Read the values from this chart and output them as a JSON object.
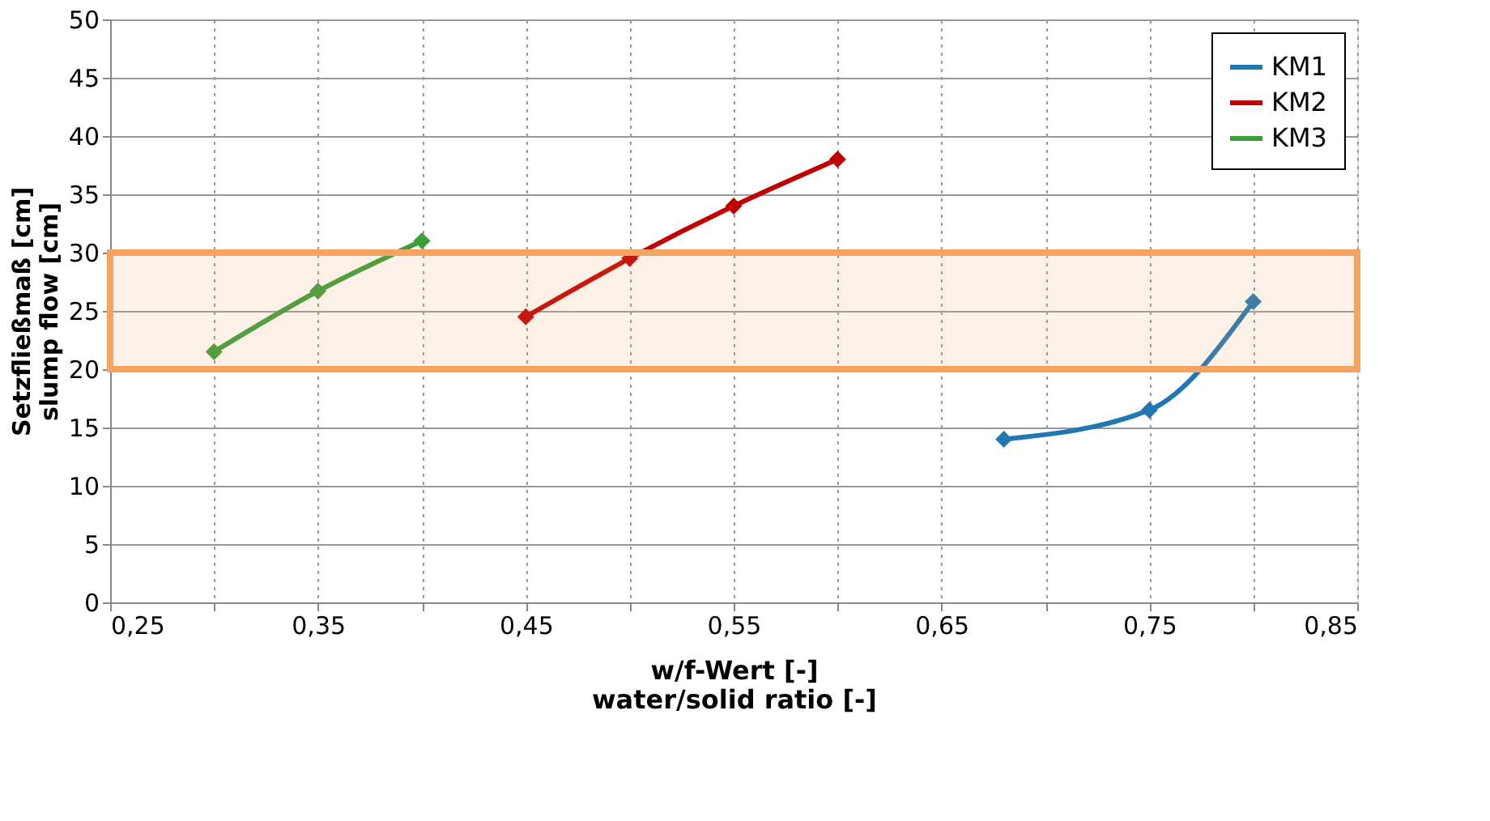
{
  "chart_data": {
    "type": "line",
    "xlabel": "w/f-Wert [-]\nwater/solid ratio [-]",
    "ylabel": "Setzfließmaß [cm]\nslump flow [cm]",
    "xlim": [
      0.25,
      0.85
    ],
    "xticks": [
      {
        "value": 0.25,
        "label": "0,25"
      },
      {
        "value": 0.3,
        "label": null
      },
      {
        "value": 0.35,
        "label": "0,35"
      },
      {
        "value": 0.4,
        "label": null
      },
      {
        "value": 0.45,
        "label": "0,45"
      },
      {
        "value": 0.5,
        "label": null
      },
      {
        "value": 0.55,
        "label": "0,55"
      },
      {
        "value": 0.6,
        "label": null
      },
      {
        "value": 0.65,
        "label": "0,65"
      },
      {
        "value": 0.7,
        "label": null
      },
      {
        "value": 0.75,
        "label": "0,75"
      },
      {
        "value": 0.8,
        "label": null
      },
      {
        "value": 0.85,
        "label": "0,85"
      }
    ],
    "ylim": [
      0,
      50
    ],
    "yticks": [
      0,
      5,
      10,
      15,
      20,
      25,
      30,
      35,
      40,
      45,
      50
    ],
    "grid": true,
    "legend": "top right",
    "marker": "diamond",
    "line_style": "solid",
    "bands": [
      {
        "axis": "y",
        "from": 20,
        "to": 30,
        "color": "#f4a460"
      }
    ],
    "series": [
      {
        "name": "KM1",
        "color": "#1f77b4",
        "x": [
          0.68,
          0.75,
          0.8
        ],
        "values": [
          14,
          16.5,
          25.8
        ]
      },
      {
        "name": "KM2",
        "color": "#c00000",
        "x": [
          0.45,
          0.5,
          0.55,
          0.6
        ],
        "values": [
          24.5,
          29.5,
          34,
          38
        ]
      },
      {
        "name": "KM3",
        "color": "#3a9e3a",
        "x": [
          0.3,
          0.35,
          0.4
        ],
        "values": [
          21.5,
          26.7,
          31
        ]
      }
    ]
  }
}
